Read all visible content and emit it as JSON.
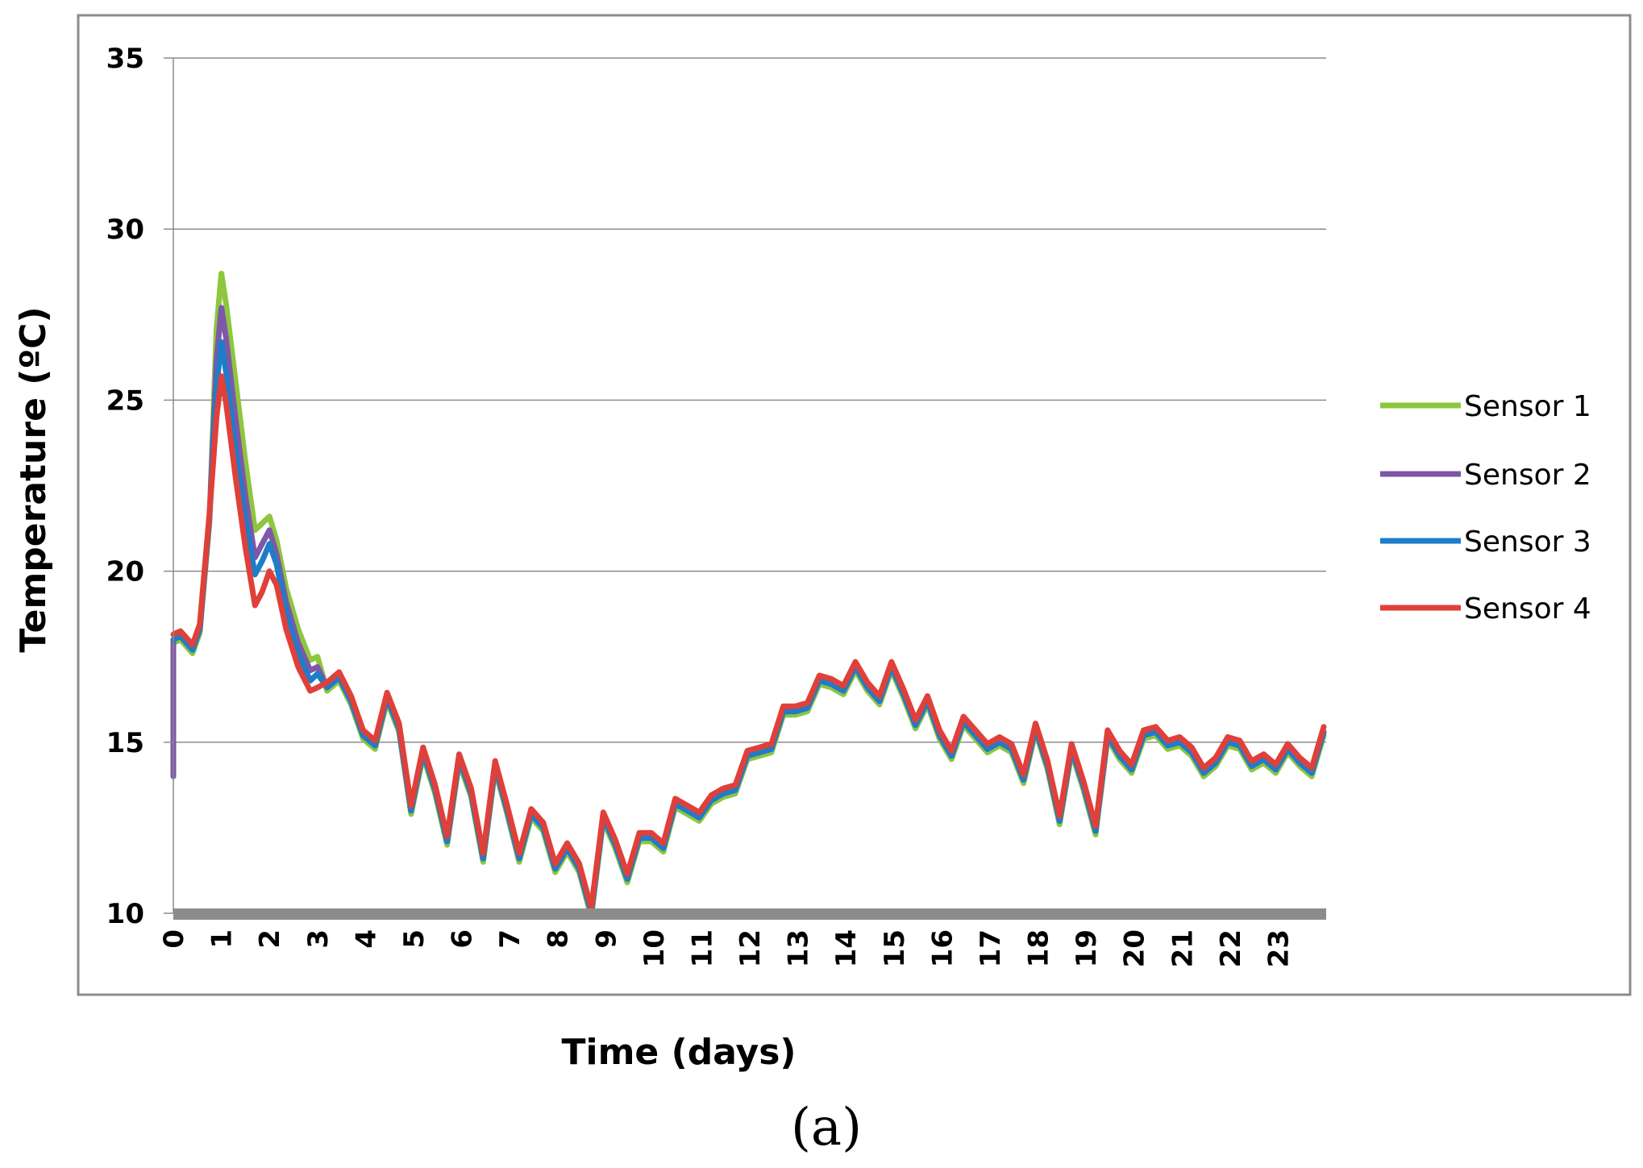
{
  "panel_label": "(a)",
  "chart_data": {
    "type": "line",
    "xlabel": "Time (days)",
    "ylabel": "Temperature (ºC)",
    "xlim": [
      0,
      24
    ],
    "ylim": [
      10,
      35
    ],
    "y_ticks": [
      10,
      15,
      20,
      25,
      30,
      35
    ],
    "x_ticks": [
      "0",
      "1",
      "2",
      "3",
      "4",
      "5",
      "6",
      "7",
      "8",
      "9",
      "10",
      "11",
      "12",
      "13",
      "14",
      "15",
      "16",
      "17",
      "18",
      "19",
      "20",
      "21",
      "22",
      "23"
    ],
    "grid": "horizontal",
    "legend_position": "right",
    "base_series": {
      "x": [
        0,
        0.15,
        0.4,
        0.55,
        0.75,
        0.9,
        1.0,
        1.1,
        1.3,
        1.5,
        1.7,
        1.85,
        2.0,
        2.15,
        2.35,
        2.6,
        2.85,
        3.0,
        3.2,
        3.45,
        3.7,
        3.95,
        4.2,
        4.45,
        4.7,
        4.95,
        5.2,
        5.45,
        5.7,
        5.95,
        6.2,
        6.45,
        6.7,
        6.95,
        7.2,
        7.45,
        7.7,
        7.95,
        8.2,
        8.45,
        8.7,
        8.95,
        9.2,
        9.45,
        9.7,
        9.95,
        10.2,
        10.45,
        10.7,
        10.95,
        11.2,
        11.45,
        11.7,
        11.95,
        12.2,
        12.45,
        12.7,
        12.95,
        13.2,
        13.45,
        13.7,
        13.95,
        14.2,
        14.45,
        14.7,
        14.95,
        15.2,
        15.45,
        15.7,
        15.95,
        16.2,
        16.45,
        16.7,
        16.95,
        17.2,
        17.45,
        17.7,
        17.95,
        18.2,
        18.45,
        18.7,
        18.95,
        19.2,
        19.45,
        19.7,
        19.95,
        20.2,
        20.45,
        20.7,
        20.95,
        21.2,
        21.45,
        21.7,
        21.95,
        22.2,
        22.45,
        22.7,
        22.95,
        23.2,
        23.45,
        23.7,
        23.95
      ],
      "y": [
        18.0,
        18.1,
        17.7,
        18.3,
        21.5,
        24.5,
        25.8,
        25.2,
        23.2,
        21.3,
        19.8,
        20.3,
        20.8,
        20.2,
        18.8,
        17.6,
        16.8,
        17.0,
        16.6,
        16.9,
        16.2,
        15.2,
        14.9,
        16.3,
        15.4,
        13.0,
        14.7,
        13.6,
        12.1,
        14.5,
        13.5,
        11.6,
        14.3,
        13.0,
        11.6,
        12.9,
        12.5,
        11.3,
        11.9,
        11.3,
        10.0,
        12.8,
        12.0,
        11.0,
        12.2,
        12.2,
        11.9,
        13.2,
        13.0,
        12.8,
        13.3,
        13.5,
        13.6,
        14.6,
        14.7,
        14.8,
        15.9,
        15.9,
        16.0,
        16.8,
        16.7,
        16.5,
        17.2,
        16.6,
        16.2,
        17.2,
        16.4,
        15.5,
        16.2,
        15.2,
        14.6,
        15.6,
        15.2,
        14.8,
        15.0,
        14.8,
        13.9,
        15.4,
        14.3,
        12.7,
        14.8,
        13.7,
        12.4,
        15.2,
        14.6,
        14.2,
        15.2,
        15.3,
        14.9,
        15.0,
        14.7,
        14.1,
        14.4,
        15.0,
        14.9,
        14.3,
        14.5,
        14.2,
        14.8,
        14.4,
        14.1,
        15.3
      ]
    },
    "series": [
      {
        "name": "Sensor 1",
        "color": "#8DC63F",
        "offsets_x": [
          0.9,
          1.0,
          1.1,
          1.3,
          1.5,
          1.7,
          1.85,
          2.0,
          2.15,
          2.35,
          2.6,
          2.85,
          3.0
        ],
        "offsets_y": [
          2.6,
          2.9,
          2.6,
          2.3,
          1.9,
          1.4,
          1.1,
          0.8,
          0.7,
          0.7,
          0.7,
          0.6,
          0.5
        ],
        "bias": -0.1,
        "peak": 27.6
      },
      {
        "name": "Sensor 2",
        "color": "#7E57A8",
        "offsets_x": [
          0.9,
          1.0,
          1.1,
          1.3,
          1.5,
          1.7,
          1.85,
          2.0,
          2.15,
          2.35,
          2.6,
          2.85,
          3.0
        ],
        "offsets_y": [
          1.7,
          1.9,
          1.6,
          1.2,
          0.9,
          0.6,
          0.5,
          0.4,
          0.3,
          0.3,
          0.3,
          0.3,
          0.2
        ],
        "bias": 0.0,
        "peak": 26.6,
        "start": 14.0
      },
      {
        "name": "Sensor 3",
        "color": "#1F7CC8",
        "offsets_x": [
          0.9,
          1.0,
          1.1,
          1.3,
          1.5,
          1.7,
          1.85,
          2.0,
          2.15,
          2.35,
          2.6,
          2.85,
          3.0
        ],
        "offsets_y": [
          0.9,
          0.9,
          0.6,
          0.3,
          0.2,
          0.1,
          0.0,
          0.0,
          0.0,
          0.0,
          0.0,
          0.0,
          0.0
        ],
        "bias": 0.0,
        "peak": 25.7
      },
      {
        "name": "Sensor 4",
        "color": "#E0403A",
        "offsets_x": [
          0.9,
          1.0,
          1.1,
          1.3,
          1.5,
          1.7,
          1.85,
          2.0,
          2.15,
          2.35,
          2.6,
          2.85,
          3.0
        ],
        "offsets_y": [
          0.0,
          -0.1,
          -0.3,
          -0.5,
          -0.6,
          -0.8,
          -0.9,
          -0.8,
          -0.6,
          -0.5,
          -0.4,
          -0.3,
          -0.4
        ],
        "bias": 0.15,
        "peak": 24.9
      }
    ]
  }
}
